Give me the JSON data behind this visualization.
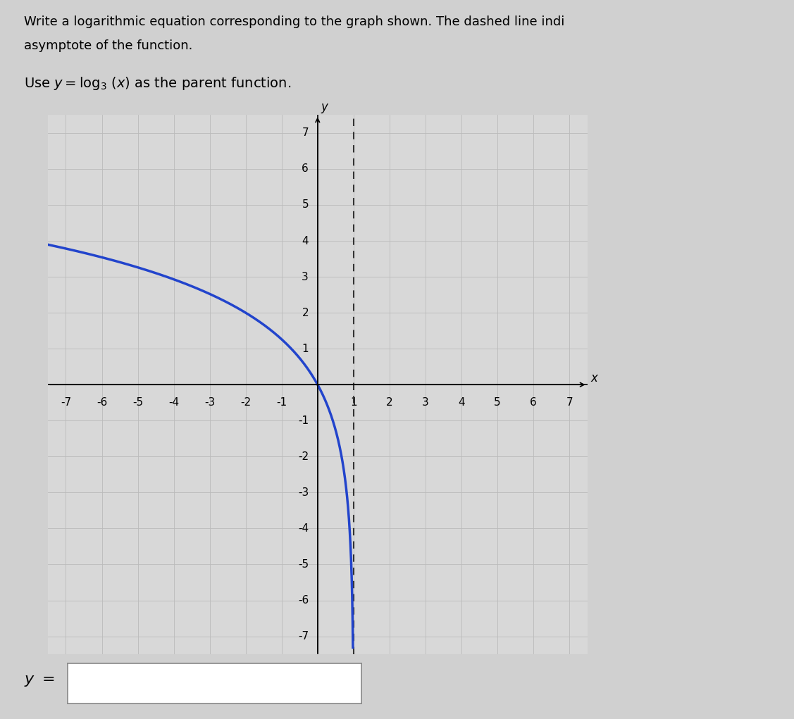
{
  "title_line1": "Write a logarithmic equation corresponding to the graph shown. The dashed line indi",
  "title_line2": "asymptote of the function.",
  "parent_func_text": "Use $y = \\log_3(x)$ as the parent function.",
  "answer_label": "y =",
  "xlim": [
    -7.5,
    7.5
  ],
  "ylim": [
    -7.5,
    7.5
  ],
  "xticks": [
    -7,
    -6,
    -5,
    -4,
    -3,
    -2,
    -1,
    1,
    2,
    3,
    4,
    5,
    6,
    7
  ],
  "yticks": [
    -7,
    -6,
    -5,
    -4,
    -3,
    -2,
    -1,
    1,
    2,
    3,
    4,
    5,
    6,
    7
  ],
  "asymptote_x": 1,
  "curve_color": "#2244cc",
  "curve_linewidth": 2.5,
  "asymptote_color": "#333333",
  "asymptote_linewidth": 1.5,
  "grid_color": "#bbbbbb",
  "background_color": "#d8d8d8",
  "axis_color": "#000000",
  "log_base": 3,
  "xlabel": "x",
  "ylabel": "y",
  "fig_bg": "#d0d0d0"
}
